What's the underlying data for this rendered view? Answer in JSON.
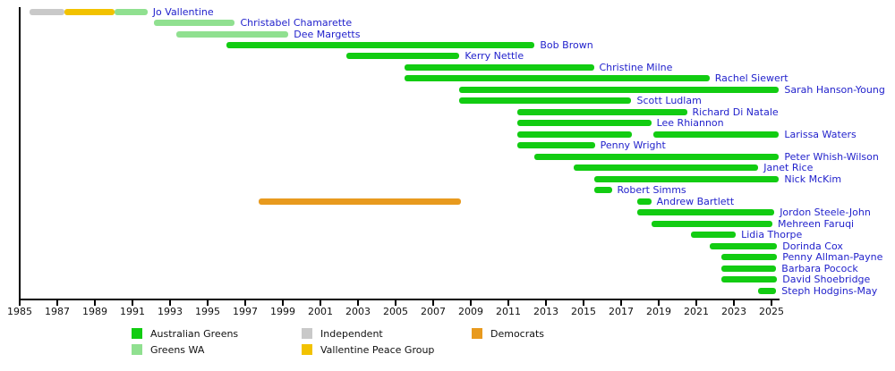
{
  "chart_data": {
    "type": "bar",
    "subtype": "gantt-timeline",
    "title": "",
    "xlabel": "",
    "ylabel": "",
    "x_axis": {
      "min": 1985,
      "max": 2025.5,
      "ticks": [
        1985,
        1987,
        1989,
        1991,
        1993,
        1995,
        1997,
        1999,
        2001,
        2003,
        2005,
        2007,
        2009,
        2011,
        2013,
        2015,
        2017,
        2019,
        2021,
        2023,
        2025
      ]
    },
    "colors": {
      "greens": "#12cc12",
      "greens_wa": "#90e090",
      "independent": "#c9c9c9",
      "vallentine_peace_group": "#f2c200",
      "democrats": "#e89a1e",
      "name_link": "#2222cc",
      "axis": "#000000"
    },
    "legend": [
      {
        "label": "Australian Greens",
        "party": "greens"
      },
      {
        "label": "Greens WA",
        "party": "greens_wa"
      },
      {
        "label": "Independent",
        "party": "independent"
      },
      {
        "label": "Vallentine Peace Group",
        "party": "vallentine_peace_group"
      },
      {
        "label": "Democrats",
        "party": "democrats"
      }
    ],
    "rows": [
      {
        "name": "Jo Vallentine",
        "segments": [
          {
            "party": "independent",
            "start": 1985.5,
            "end": 1987.4
          },
          {
            "party": "vallentine_peace_group",
            "start": 1987.4,
            "end": 1990.05
          },
          {
            "party": "greens_wa",
            "start": 1990.05,
            "end": 1991.8
          }
        ]
      },
      {
        "name": "Christabel Chamarette",
        "segments": [
          {
            "party": "greens_wa",
            "start": 1992.15,
            "end": 1996.45
          }
        ]
      },
      {
        "name": "Dee Margetts",
        "segments": [
          {
            "party": "greens_wa",
            "start": 1993.35,
            "end": 1999.3
          }
        ]
      },
      {
        "name": "Bob Brown",
        "segments": [
          {
            "party": "greens",
            "start": 1996.0,
            "end": 2012.4
          }
        ]
      },
      {
        "name": "Kerry Nettle",
        "segments": [
          {
            "party": "greens",
            "start": 2002.4,
            "end": 2008.4
          }
        ]
      },
      {
        "name": "Christine Milne",
        "segments": [
          {
            "party": "greens",
            "start": 2005.45,
            "end": 2015.55
          }
        ]
      },
      {
        "name": "Rachel Siewert",
        "segments": [
          {
            "party": "greens",
            "start": 2005.45,
            "end": 2021.7
          }
        ]
      },
      {
        "name": "Sarah Hanson-Young",
        "segments": [
          {
            "party": "greens",
            "start": 2008.4,
            "end": 2025.4
          }
        ]
      },
      {
        "name": "Scott Ludlam",
        "segments": [
          {
            "party": "greens",
            "start": 2008.4,
            "end": 2017.55
          }
        ]
      },
      {
        "name": "Richard Di Natale",
        "segments": [
          {
            "party": "greens",
            "start": 2011.45,
            "end": 2020.5
          }
        ]
      },
      {
        "name": "Lee Rhiannon",
        "segments": [
          {
            "party": "greens",
            "start": 2011.45,
            "end": 2018.6
          }
        ]
      },
      {
        "name": "Larissa Waters",
        "segments": [
          {
            "party": "greens",
            "start": 2011.45,
            "end": 2017.55
          },
          {
            "party": "greens",
            "start": 2018.7,
            "end": 2025.4
          }
        ]
      },
      {
        "name": "Penny Wright",
        "segments": [
          {
            "party": "greens",
            "start": 2011.45,
            "end": 2015.6
          }
        ]
      },
      {
        "name": "Peter Whish-Wilson",
        "segments": [
          {
            "party": "greens",
            "start": 2012.4,
            "end": 2025.4
          }
        ]
      },
      {
        "name": "Janet Rice",
        "segments": [
          {
            "party": "greens",
            "start": 2014.45,
            "end": 2024.3
          }
        ]
      },
      {
        "name": "Nick McKim",
        "segments": [
          {
            "party": "greens",
            "start": 2015.55,
            "end": 2025.4
          }
        ]
      },
      {
        "name": "Robert Simms",
        "segments": [
          {
            "party": "greens",
            "start": 2015.55,
            "end": 2016.5
          }
        ]
      },
      {
        "name": "Andrew Bartlett",
        "segments": [
          {
            "party": "democrats",
            "start": 1997.7,
            "end": 2008.5
          },
          {
            "party": "greens",
            "start": 2017.85,
            "end": 2018.6
          }
        ]
      },
      {
        "name": "Jordon Steele-John",
        "segments": [
          {
            "party": "greens",
            "start": 2017.85,
            "end": 2025.15
          }
        ]
      },
      {
        "name": "Mehreen Faruqi",
        "segments": [
          {
            "party": "greens",
            "start": 2018.6,
            "end": 2025.05
          }
        ]
      },
      {
        "name": "Lidia Thorpe",
        "segments": [
          {
            "party": "greens",
            "start": 2020.7,
            "end": 2023.1
          }
        ]
      },
      {
        "name": "Dorinda Cox",
        "segments": [
          {
            "party": "greens",
            "start": 2021.7,
            "end": 2025.3
          }
        ]
      },
      {
        "name": "Penny Allman-Payne",
        "segments": [
          {
            "party": "greens",
            "start": 2022.35,
            "end": 2025.3
          }
        ]
      },
      {
        "name": "Barbara Pocock",
        "segments": [
          {
            "party": "greens",
            "start": 2022.35,
            "end": 2025.25
          }
        ]
      },
      {
        "name": "David Shoebridge",
        "segments": [
          {
            "party": "greens",
            "start": 2022.35,
            "end": 2025.3
          }
        ]
      },
      {
        "name": "Steph Hodgins-May",
        "segments": [
          {
            "party": "greens",
            "start": 2024.3,
            "end": 2025.25
          }
        ]
      }
    ]
  }
}
